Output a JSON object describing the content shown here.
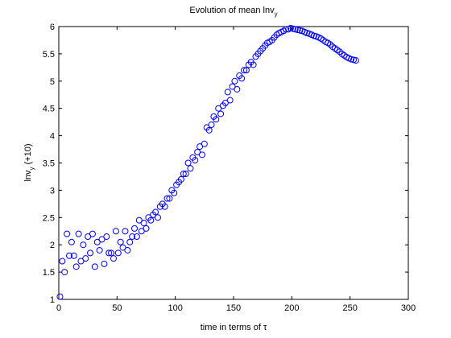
{
  "chart_data": {
    "type": "scatter",
    "title": "Evolution of mean lnv",
    "title_subscript": "y",
    "xlabel": "time in terms of τ",
    "ylabel": "lnv",
    "ylabel_subscript": "y",
    "ylabel_suffix": " (+10)",
    "xlim": [
      0,
      300
    ],
    "xticks": [
      0,
      50,
      100,
      150,
      200,
      250,
      300
    ],
    "ylim": [
      1,
      6
    ],
    "yticks": [
      1,
      1.5,
      2,
      2.5,
      3,
      3.5,
      4,
      4.5,
      5,
      5.5,
      6
    ],
    "series": [
      {
        "color": "#0000ff",
        "x": [
          1,
          3,
          5,
          7,
          9,
          11,
          13,
          15,
          17,
          19,
          21,
          23,
          25,
          27,
          29,
          31,
          33,
          35,
          37,
          39,
          41,
          43,
          45,
          47,
          49,
          51,
          53,
          55,
          57,
          59,
          61,
          63,
          65,
          67,
          69,
          71,
          73,
          75,
          77,
          79,
          81,
          83,
          85,
          87,
          89,
          91,
          93,
          95,
          97,
          99,
          101,
          103,
          105,
          107,
          109,
          111,
          113,
          115,
          117,
          119,
          121,
          123,
          125,
          127,
          129,
          131,
          133,
          135,
          137,
          139,
          141,
          143,
          145,
          147,
          149,
          151,
          153,
          155,
          157,
          159,
          161,
          163,
          165,
          167,
          169,
          171,
          173,
          175,
          177,
          179,
          181,
          183,
          185,
          187,
          189,
          191,
          193,
          195,
          197,
          199,
          201,
          203,
          205,
          207,
          209,
          211,
          213,
          215,
          217,
          219,
          221,
          223,
          225,
          227,
          229,
          231,
          233,
          235,
          237,
          239,
          241,
          243,
          245,
          247,
          249,
          251,
          253,
          255
        ],
        "values": [
          1.05,
          1.7,
          1.5,
          2.2,
          1.8,
          2.05,
          1.8,
          1.6,
          2.2,
          1.7,
          2.0,
          1.75,
          2.15,
          1.85,
          2.2,
          1.6,
          2.05,
          1.9,
          2.1,
          1.65,
          2.15,
          1.85,
          1.85,
          1.75,
          2.25,
          1.85,
          2.05,
          1.95,
          2.25,
          1.9,
          2.05,
          2.15,
          2.3,
          2.15,
          2.45,
          2.25,
          2.4,
          2.3,
          2.5,
          2.45,
          2.55,
          2.6,
          2.5,
          2.7,
          2.75,
          2.7,
          2.85,
          2.85,
          3.0,
          2.95,
          3.1,
          3.15,
          3.2,
          3.3,
          3.3,
          3.5,
          3.4,
          3.6,
          3.55,
          3.7,
          3.8,
          3.65,
          3.85,
          4.15,
          4.1,
          4.2,
          4.35,
          4.3,
          4.5,
          4.4,
          4.55,
          4.6,
          4.8,
          4.65,
          4.9,
          5.0,
          4.85,
          5.1,
          5.05,
          5.2,
          5.2,
          5.3,
          5.35,
          5.3,
          5.45,
          5.5,
          5.55,
          5.6,
          5.65,
          5.7,
          5.72,
          5.75,
          5.8,
          5.85,
          5.88,
          5.9,
          5.92,
          5.95,
          5.95,
          5.97,
          5.96,
          5.95,
          5.94,
          5.93,
          5.92,
          5.9,
          5.88,
          5.87,
          5.85,
          5.83,
          5.82,
          5.8,
          5.78,
          5.75,
          5.72,
          5.7,
          5.67,
          5.63,
          5.6,
          5.57,
          5.54,
          5.5,
          5.47,
          5.44,
          5.42,
          5.4,
          5.39,
          5.38
        ]
      }
    ]
  }
}
